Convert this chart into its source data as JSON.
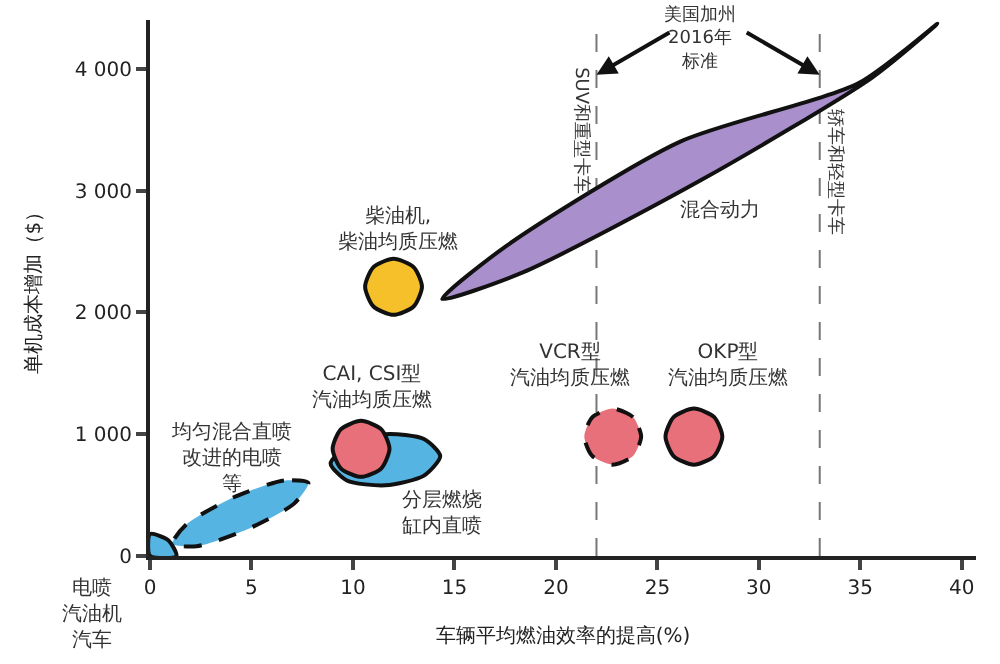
{
  "chart_data": {
    "type": "area",
    "xlabel": "车辆平均燃油效率的提高(%)",
    "ylabel": "单机成本增加（$）",
    "xlim": [
      0,
      40.7
    ],
    "xticks": [
      0,
      5,
      10,
      15,
      20,
      25,
      30,
      35,
      40
    ],
    "ylim": [
      0,
      4400
    ],
    "yticks": [
      0,
      {
        "value": 1000,
        "label": "1 000"
      },
      {
        "value": 2000,
        "label": "2 000"
      },
      {
        "value": 3000,
        "label": "3 000"
      },
      {
        "value": 4000,
        "label": "4 000"
      }
    ],
    "grid": false,
    "marker": "none",
    "series": [
      {
        "color": "#a98fcc",
        "line_style": "solid",
        "x": [
          38.8,
          34.9,
          26.1,
          17.6,
          14.4,
          18.4,
          27.2,
          35.6,
          38.8
        ],
        "values": [
          4370,
          3880,
          3400,
          2550,
          2110,
          2330,
          3090,
          3930,
          4370
        ]
      },
      {
        "color": "#f5c02a",
        "line_style": "solid",
        "x": [
          13.4,
          13.0,
          12.0,
          11.0,
          10.6,
          11.0,
          12.0,
          13.0,
          13.4
        ],
        "values": [
          2210,
          2370,
          2440,
          2370,
          2210,
          2050,
          1980,
          2050,
          2210
        ]
      },
      {
        "color": "#56b4e3",
        "line_style": "solid",
        "x": [
          14.3,
          13.5,
          11.6,
          9.7,
          8.9,
          9.7,
          11.6,
          13.5,
          14.3
        ],
        "values": [
          820,
          960,
          1000,
          900,
          760,
          620,
          580,
          660,
          820
        ]
      },
      {
        "color": "#e8707a",
        "line_style": "solid",
        "x": [
          11.8,
          11.4,
          10.4,
          9.4,
          9.0,
          9.4,
          10.4,
          11.4,
          11.8
        ],
        "values": [
          880,
          1040,
          1110,
          1040,
          880,
          720,
          650,
          720,
          880
        ]
      },
      {
        "color": "#56b4e3",
        "line_style": "dashed",
        "x": [
          7.8,
          6.6,
          4.1,
          1.8,
          1.1,
          2.3,
          4.8,
          7.1,
          7.8
        ],
        "values": [
          600,
          620,
          480,
          260,
          100,
          80,
          220,
          430,
          600
        ]
      },
      {
        "color": "#56b4e3",
        "line_style": "solid",
        "x": [
          0,
          1.3,
          0.9,
          0,
          0
        ],
        "values": [
          0,
          0,
          130,
          180,
          0
        ]
      },
      {
        "color": "#e8707a",
        "line_style": "dashed",
        "x": [
          24.2,
          23.8,
          22.8,
          21.8,
          21.4,
          21.8,
          22.8,
          23.8,
          24.2
        ],
        "values": [
          980,
          1140,
          1210,
          1140,
          980,
          820,
          750,
          820,
          980
        ]
      },
      {
        "color": "#e8707a",
        "line_style": "solid",
        "x": [
          28.2,
          27.8,
          26.8,
          25.8,
          25.4,
          25.8,
          26.8,
          27.8,
          28.2
        ],
        "values": [
          980,
          1140,
          1210,
          1140,
          980,
          820,
          750,
          820,
          980
        ]
      }
    ],
    "ref_lines": [
      {
        "axis": "x",
        "value": 22,
        "label": "SUV和重型卡车",
        "line_style": "dashed",
        "color": "#777777"
      },
      {
        "axis": "x",
        "value": 33,
        "label": "轿车和轻型卡车",
        "line_style": "dashed",
        "color": "#777777"
      }
    ],
    "annotations": [
      "柴油机,柴油均质压燃",
      "CAI, CSI型汽油均质压燃",
      "均匀混合直喷改进的电喷等",
      "分层燃烧缸内直喷",
      "混合动力",
      "VCR型汽油均质压燃",
      "OKP型汽油均质压燃",
      "电喷汽油机汽车",
      {
        "text": "美国加州2016年标准",
        "x": 22,
        "y": 3950
      }
    ]
  }
}
